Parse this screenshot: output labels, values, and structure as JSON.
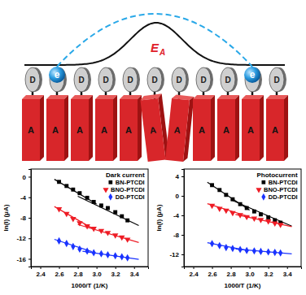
{
  "diagram": {
    "donor_label": "D",
    "acceptor_label": "A",
    "electron_label": "e",
    "barrier_label": "E",
    "barrier_subscript": "A"
  },
  "chart_data": [
    {
      "type": "scatter",
      "title": "Dark current",
      "x_label": "1000/T (1/K)",
      "y_label": "ln(I) (μA)",
      "xlim": [
        2.3,
        3.55
      ],
      "xticks": [
        2.4,
        2.6,
        2.8,
        {
          "value": 3,
          "label": "3.0"
        },
        3.2,
        3.4
      ],
      "ylim": [
        -17.5,
        1.5
      ],
      "yticks": [
        0,
        -4,
        -8,
        -12,
        -16
      ],
      "legend": "upper right",
      "series": [
        {
          "name": "BN-PTCDI",
          "color": "#000000",
          "marker": "square",
          "x": [
            2.6,
            2.68,
            2.75,
            2.82,
            2.9,
            2.97,
            3.05,
            3.12,
            3.2,
            3.27,
            3.33
          ],
          "values": [
            -1.0,
            -1.8,
            -2.5,
            -3.2,
            -4.1,
            -4.9,
            -5.6,
            -6.1,
            -6.9,
            -7.7,
            -8.5
          ],
          "fits": [
            {
              "x": [
                2.55,
                3.0
              ],
              "values": [
                -0.5,
                -5.3
              ]
            },
            {
              "x": [
                2.8,
                3.45
              ],
              "values": [
                -3.8,
                -9.5
              ]
            }
          ]
        },
        {
          "name": "BNO-PTCDI",
          "color": "#ee1c25",
          "marker": "triangle-down",
          "x": [
            2.6,
            2.68,
            2.75,
            2.82,
            2.9,
            2.97,
            3.05,
            3.12,
            3.2,
            3.27,
            3.33
          ],
          "values": [
            -6.3,
            -7.2,
            -8.2,
            -9.0,
            -9.6,
            -10.1,
            -10.5,
            -10.9,
            -11.4,
            -11.8,
            -12.2
          ],
          "fits": [
            {
              "x": [
                2.55,
                2.95
              ],
              "values": [
                -5.8,
                -10.0
              ]
            },
            {
              "x": [
                2.8,
                3.45
              ],
              "values": [
                -9.3,
                -12.8
              ]
            }
          ]
        },
        {
          "name": "DD-PTCDI",
          "color": "#1a33ff",
          "marker": "diamond",
          "x": [
            2.6,
            2.68,
            2.75,
            2.82,
            2.9,
            2.97,
            3.05,
            3.12,
            3.2,
            3.27,
            3.33
          ],
          "values": [
            -12.5,
            -13.0,
            -13.6,
            -14.1,
            -14.5,
            -14.8,
            -15.0,
            -15.2,
            -15.4,
            -15.6,
            -15.8
          ],
          "fits": [
            {
              "x": [
                2.55,
                2.95
              ],
              "values": [
                -12.2,
                -14.6
              ]
            },
            {
              "x": [
                2.85,
                3.45
              ],
              "values": [
                -14.5,
                -16.1
              ]
            }
          ]
        }
      ]
    },
    {
      "type": "scatter",
      "title": "Photocurrent",
      "x_label": "1000/T (1/K)",
      "y_label": "ln(I) (μA)",
      "xlim": [
        2.3,
        3.55
      ],
      "xticks": [
        2.4,
        2.6,
        2.8,
        {
          "value": 3,
          "label": "3.0"
        },
        3.2,
        3.4
      ],
      "ylim": [
        -14.5,
        5.5
      ],
      "yticks": [
        4,
        0,
        -4,
        -8,
        -12
      ],
      "legend": "upper right",
      "series": [
        {
          "name": "BN-PTCDI",
          "color": "#000000",
          "marker": "square",
          "x": [
            2.6,
            2.68,
            2.75,
            2.82,
            2.9,
            2.97,
            3.05,
            3.12,
            3.2,
            3.27,
            3.33
          ],
          "values": [
            2.2,
            1.2,
            0.2,
            -0.7,
            -1.7,
            -2.5,
            -3.2,
            -3.8,
            -4.4,
            -5.0,
            -5.5
          ],
          "fits": [
            {
              "x": [
                2.55,
                3.0
              ],
              "values": [
                2.8,
                -2.9
              ]
            },
            {
              "x": [
                2.8,
                3.45
              ],
              "values": [
                -0.8,
                -6.2
              ]
            }
          ]
        },
        {
          "name": "BNO-PTCDI",
          "color": "#ee1c25",
          "marker": "triangle-down",
          "x": [
            2.6,
            2.68,
            2.75,
            2.82,
            2.9,
            2.97,
            3.05,
            3.12,
            3.2,
            3.27,
            3.33
          ],
          "values": [
            -2.0,
            -2.6,
            -3.0,
            -3.5,
            -3.9,
            -4.3,
            -4.6,
            -4.9,
            -5.2,
            -5.6,
            -5.9
          ],
          "fits": [
            {
              "x": [
                2.55,
                3.0
              ],
              "values": [
                -1.6,
                -4.3
              ]
            },
            {
              "x": [
                2.85,
                3.45
              ],
              "values": [
                -3.8,
                -6.3
              ]
            }
          ]
        },
        {
          "name": "DD-PTCDI",
          "color": "#1a33ff",
          "marker": "diamond",
          "x": [
            2.6,
            2.68,
            2.75,
            2.82,
            2.9,
            2.97,
            3.05,
            3.12,
            3.2,
            3.27,
            3.33
          ],
          "values": [
            -9.8,
            -10.2,
            -10.6,
            -10.8,
            -11.0,
            -11.2,
            -11.3,
            -11.4,
            -11.5,
            -11.6,
            -11.7
          ],
          "fits": [
            {
              "x": [
                2.55,
                2.95
              ],
              "values": [
                -9.6,
                -11.1
              ]
            },
            {
              "x": [
                2.85,
                3.45
              ],
              "values": [
                -10.9,
                -11.9
              ]
            }
          ]
        }
      ]
    }
  ]
}
